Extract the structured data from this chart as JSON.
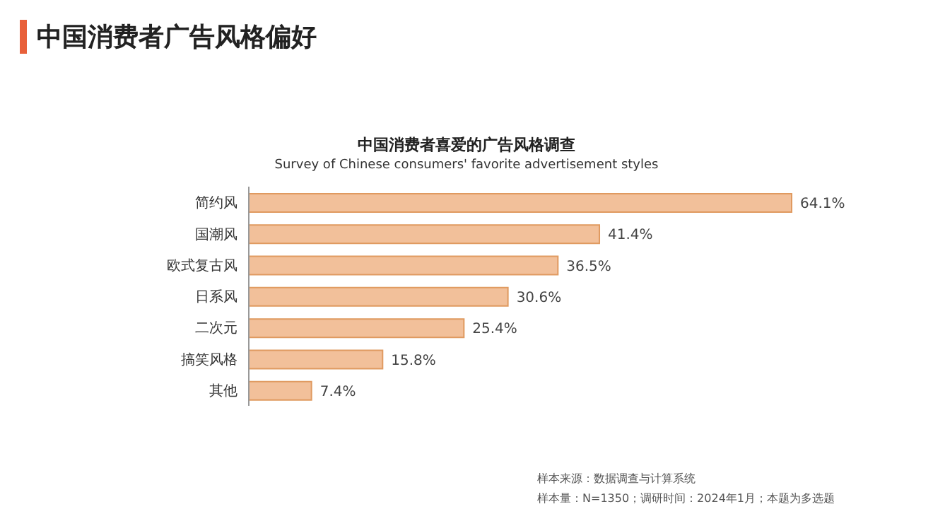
{
  "chart_data": {
    "type": "bar",
    "orientation": "horizontal",
    "title": "中国消费者广告风格偏好",
    "subtitle": "中国消费者喜爱的广告风格调查",
    "categories": [
      "简约风",
      "国潮风",
      "欧式复古风",
      "日系风",
      "二次元",
      "搞笑风格",
      "其他"
    ],
    "values": [
      64.1,
      41.4,
      36.5,
      30.6,
      25.4,
      15.8,
      7.4
    ],
    "value_labels": [
      "64.1%",
      "41.4%",
      "36.5%",
      "30.6%",
      "25.4%",
      "15.8%",
      "7.4%"
    ],
    "color": "#f2c09a",
    "annotations": [
      "Survey of Chinese consumers' favorite advertisement styles",
      "样本来源：数据调查与计算系统",
      "样本量：N=1350；调研时间：2024年1月；本题为多选题"
    ]
  }
}
